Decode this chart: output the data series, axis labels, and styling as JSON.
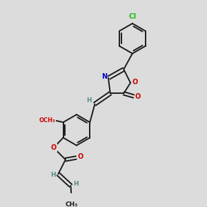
{
  "bg_color": "#dcdcdc",
  "bond_color": "#1a1a1a",
  "bond_width": 1.4,
  "atom_colors": {
    "N": "#0000cc",
    "O": "#cc0000",
    "Cl": "#22bb22",
    "C": "#1a1a1a",
    "H": "#558888"
  },
  "font_size": 7.0
}
